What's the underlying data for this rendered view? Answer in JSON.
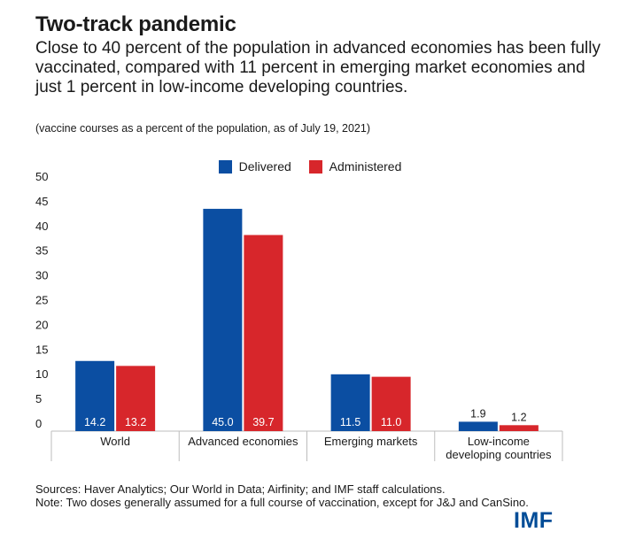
{
  "header": {
    "title": "Two-track pandemic",
    "subtitle": "Close to 40 percent of the population in advanced economies has been fully vaccinated, compared with 11 percent in emerging market economies and just 1 percent in low-income developing countries.",
    "note": "(vaccine courses as a percent of the population, as of July 19, 2021)"
  },
  "legend": {
    "position": "top-center"
  },
  "colors": {
    "delivered": "#0b4ea2",
    "administered": "#d7262b",
    "axis": "#bdbdbd"
  },
  "chart_data": {
    "type": "bar",
    "categories": [
      "World",
      "Advanced economies",
      "Emerging markets",
      "Low-income developing countries"
    ],
    "category_lines": [
      [
        "World"
      ],
      [
        "Advanced economies"
      ],
      [
        "Emerging markets"
      ],
      [
        "Low-income",
        "developing countries"
      ]
    ],
    "series": [
      {
        "name": "Delivered",
        "values": [
          14.2,
          45.0,
          11.5,
          1.9
        ],
        "labels": [
          "14.2",
          "45.0",
          "11.5",
          "1.9"
        ]
      },
      {
        "name": "Administered",
        "values": [
          13.2,
          39.7,
          11.0,
          1.2
        ],
        "labels": [
          "13.2",
          "39.7",
          "11.0",
          "1.2"
        ]
      }
    ],
    "yticks": [
      0,
      5,
      10,
      15,
      20,
      25,
      30,
      35,
      40,
      45,
      50
    ],
    "ylim": [
      0,
      50
    ],
    "grid": false
  },
  "footer": {
    "sources": "Sources: Haver Analytics; Our World in Data; Airfinity; and IMF staff calculations.",
    "note": "Note: Two doses generally assumed for a full course of vaccination, except for J&J and CanSino."
  },
  "logo": {
    "text": "IMF"
  }
}
